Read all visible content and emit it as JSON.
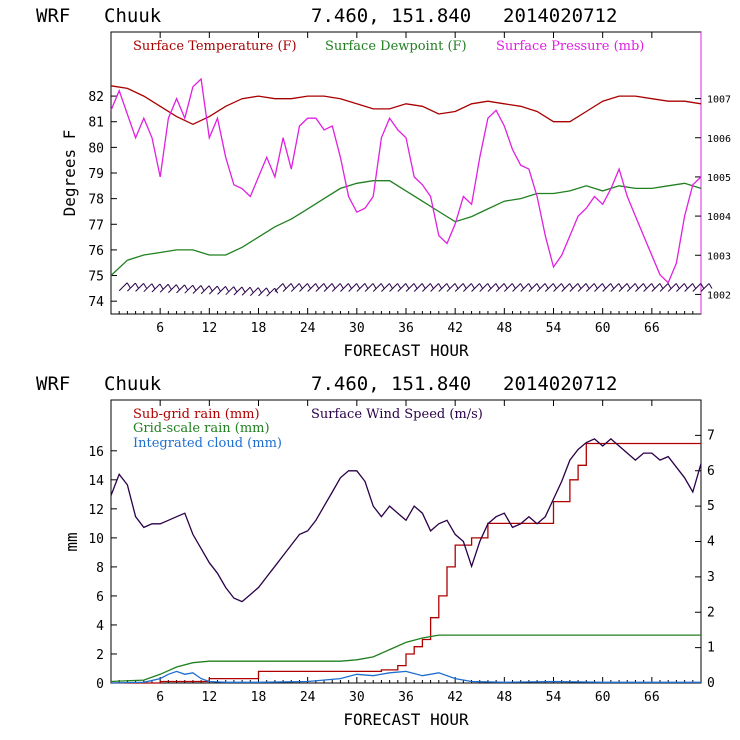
{
  "header": {
    "model": "WRF",
    "station": "Chuuk",
    "coords": "7.460, 151.840",
    "init": "2014020712"
  },
  "colors": {
    "temperature": "#a80000",
    "dewpoint": "#208020",
    "pressure": "#e020e0",
    "wind": "#2a0048",
    "subgrid": "#b00000",
    "gridscale": "#208020",
    "cloud": "#1e6ed0"
  },
  "chart_data": [
    {
      "type": "line",
      "title": "WRF Chuuk 7.460, 151.840 2014020712",
      "xlabel": "FORECAST HOUR",
      "ylabel": "Degrees F",
      "y2label": "",
      "xlim": [
        0,
        72
      ],
      "ylim": [
        73.5,
        84.5
      ],
      "y2lim": [
        1001.5,
        1008.7
      ],
      "xticks": [
        6,
        12,
        18,
        24,
        30,
        36,
        42,
        48,
        54,
        60,
        66
      ],
      "xtick_labels": [
        "6",
        "12",
        "18",
        "24",
        "30",
        "36",
        "42",
        "48",
        "54",
        "60",
        "66"
      ],
      "yticks": [
        74,
        75,
        76,
        77,
        78,
        79,
        80,
        81,
        82
      ],
      "y2ticks": [
        1002,
        1003,
        1004,
        1005,
        1006,
        1007
      ],
      "series": [
        {
          "name": "Surface Temperature (F)",
          "axis": "left",
          "color_key": "temperature",
          "x": [
            0,
            2,
            4,
            6,
            8,
            10,
            12,
            14,
            16,
            18,
            20,
            22,
            24,
            26,
            28,
            30,
            32,
            34,
            36,
            38,
            40,
            42,
            44,
            46,
            48,
            50,
            52,
            54,
            56,
            58,
            60,
            62,
            64,
            66,
            68,
            70,
            72
          ],
          "values": [
            82.4,
            82.3,
            82.0,
            81.6,
            81.2,
            80.9,
            81.2,
            81.6,
            81.9,
            82.0,
            81.9,
            81.9,
            82.0,
            82.0,
            81.9,
            81.7,
            81.5,
            81.5,
            81.7,
            81.6,
            81.3,
            81.4,
            81.7,
            81.8,
            81.7,
            81.6,
            81.4,
            81.0,
            81.0,
            81.4,
            81.8,
            82.0,
            82.0,
            81.9,
            81.8,
            81.8,
            81.7
          ]
        },
        {
          "name": "Surface Dewpoint (F)",
          "axis": "left",
          "color_key": "dewpoint",
          "x": [
            0,
            2,
            4,
            6,
            8,
            10,
            12,
            14,
            16,
            18,
            20,
            22,
            24,
            26,
            28,
            30,
            32,
            34,
            36,
            38,
            40,
            42,
            44,
            46,
            48,
            50,
            52,
            54,
            56,
            58,
            60,
            62,
            64,
            66,
            68,
            70,
            72
          ],
          "values": [
            75.0,
            75.6,
            75.8,
            75.9,
            76.0,
            76.0,
            75.8,
            75.8,
            76.1,
            76.5,
            76.9,
            77.2,
            77.6,
            78.0,
            78.4,
            78.6,
            78.7,
            78.7,
            78.3,
            77.9,
            77.5,
            77.1,
            77.3,
            77.6,
            77.9,
            78.0,
            78.2,
            78.2,
            78.3,
            78.5,
            78.3,
            78.5,
            78.4,
            78.4,
            78.5,
            78.6,
            78.4
          ]
        },
        {
          "name": "Surface Pressure (mb)",
          "axis": "right",
          "color_key": "pressure",
          "x": [
            0,
            1,
            2,
            3,
            4,
            5,
            6,
            7,
            8,
            9,
            10,
            11,
            12,
            13,
            14,
            15,
            16,
            17,
            18,
            19,
            20,
            21,
            22,
            23,
            24,
            25,
            26,
            27,
            28,
            29,
            30,
            31,
            32,
            33,
            34,
            35,
            36,
            37,
            38,
            39,
            40,
            41,
            42,
            43,
            44,
            45,
            46,
            47,
            48,
            49,
            50,
            51,
            52,
            53,
            54,
            55,
            56,
            57,
            58,
            59,
            60,
            61,
            62,
            63,
            64,
            65,
            66,
            67,
            68,
            69,
            70,
            71,
            72
          ],
          "values": [
            1006.7,
            1007.2,
            1006.6,
            1006.0,
            1006.5,
            1006.0,
            1005.0,
            1006.5,
            1007.0,
            1006.5,
            1007.3,
            1007.5,
            1006.0,
            1006.5,
            1005.5,
            1004.8,
            1004.7,
            1004.5,
            1005.0,
            1005.5,
            1005.0,
            1006.0,
            1005.2,
            1006.3,
            1006.5,
            1006.5,
            1006.2,
            1006.3,
            1005.5,
            1004.5,
            1004.1,
            1004.2,
            1004.5,
            1006.0,
            1006.5,
            1006.2,
            1006.0,
            1005.0,
            1004.8,
            1004.5,
            1003.5,
            1003.3,
            1003.8,
            1004.5,
            1004.3,
            1005.5,
            1006.5,
            1006.7,
            1006.3,
            1005.7,
            1005.3,
            1005.2,
            1004.5,
            1003.5,
            1002.7,
            1003.0,
            1003.5,
            1004.0,
            1004.2,
            1004.5,
            1004.3,
            1004.7,
            1005.2,
            1004.5,
            1004.0,
            1003.5,
            1003.0,
            1002.5,
            1002.3,
            1002.8,
            1004.0,
            1004.8,
            1005.0
          ]
        }
      ],
      "wind_barbs": {
        "y": 74.3,
        "x_start": 1,
        "x_end": 72,
        "step": 1
      }
    },
    {
      "type": "line",
      "title": "WRF Chuuk 7.460, 151.840 2014020712",
      "xlabel": "FORECAST HOUR",
      "ylabel": "mm",
      "xlim": [
        0,
        72
      ],
      "ylim": [
        0,
        19.5
      ],
      "y2lim": [
        0,
        8.0
      ],
      "xticks": [
        6,
        12,
        18,
        24,
        30,
        36,
        42,
        48,
        54,
        60,
        66
      ],
      "xtick_labels": [
        "6",
        "12",
        "18",
        "24",
        "30",
        "36",
        "42",
        "48",
        "54",
        "60",
        "66"
      ],
      "yticks": [
        0,
        2,
        4,
        6,
        8,
        10,
        12,
        14,
        16
      ],
      "y2ticks": [
        0,
        1,
        2,
        3,
        4,
        5,
        6,
        7
      ],
      "series": [
        {
          "name": "Sub-grid rain (mm)",
          "axis": "left",
          "color_key": "subgrid",
          "step": true,
          "x": [
            0,
            6,
            12,
            18,
            30,
            33,
            35,
            36,
            37,
            38,
            39,
            40,
            41,
            42,
            44,
            46,
            48,
            53,
            54,
            56,
            57,
            58,
            59,
            60,
            72
          ],
          "values": [
            0.0,
            0.1,
            0.3,
            0.8,
            0.8,
            0.9,
            1.2,
            2.0,
            2.5,
            3.0,
            4.5,
            6.0,
            8.0,
            9.5,
            10.0,
            11.0,
            11.0,
            11.0,
            12.5,
            14.0,
            15.0,
            16.5,
            16.5,
            16.5,
            16.5
          ]
        },
        {
          "name": "Grid-scale rain (mm)",
          "axis": "left",
          "color_key": "gridscale",
          "x": [
            0,
            4,
            6,
            8,
            10,
            12,
            16,
            20,
            24,
            28,
            30,
            32,
            34,
            36,
            38,
            40,
            44,
            48,
            54,
            60,
            66,
            72
          ],
          "values": [
            0.1,
            0.2,
            0.6,
            1.1,
            1.4,
            1.5,
            1.5,
            1.5,
            1.5,
            1.5,
            1.6,
            1.8,
            2.3,
            2.8,
            3.1,
            3.3,
            3.3,
            3.3,
            3.3,
            3.3,
            3.3,
            3.3
          ]
        },
        {
          "name": "Integrated cloud (mm)",
          "axis": "left",
          "color_key": "cloud",
          "x": [
            0,
            4,
            6,
            7,
            8,
            9,
            10,
            11,
            12,
            14,
            18,
            24,
            28,
            30,
            32,
            34,
            36,
            38,
            40,
            42,
            44,
            48,
            54,
            60,
            66,
            72
          ],
          "values": [
            0.0,
            0.05,
            0.3,
            0.6,
            0.8,
            0.6,
            0.7,
            0.3,
            0.1,
            0.05,
            0.05,
            0.1,
            0.3,
            0.6,
            0.5,
            0.7,
            0.8,
            0.5,
            0.7,
            0.3,
            0.1,
            0.05,
            0.1,
            0.05,
            0.05,
            0.05
          ]
        },
        {
          "name": "Surface Wind Speed (m/s)",
          "axis": "right",
          "color_key": "wind",
          "x": [
            0,
            1,
            2,
            3,
            4,
            5,
            6,
            7,
            8,
            9,
            10,
            11,
            12,
            13,
            14,
            15,
            16,
            17,
            18,
            19,
            20,
            21,
            22,
            23,
            24,
            25,
            26,
            27,
            28,
            29,
            30,
            31,
            32,
            33,
            34,
            35,
            36,
            37,
            38,
            39,
            40,
            41,
            42,
            43,
            44,
            45,
            46,
            47,
            48,
            49,
            50,
            51,
            52,
            53,
            54,
            55,
            56,
            57,
            58,
            59,
            60,
            61,
            62,
            63,
            64,
            65,
            66,
            67,
            68,
            69,
            70,
            71,
            72
          ],
          "values": [
            5.3,
            5.9,
            5.6,
            4.7,
            4.4,
            4.5,
            4.5,
            4.6,
            4.7,
            4.8,
            4.2,
            3.8,
            3.4,
            3.1,
            2.7,
            2.4,
            2.3,
            2.5,
            2.7,
            3.0,
            3.3,
            3.6,
            3.9,
            4.2,
            4.3,
            4.6,
            5.0,
            5.4,
            5.8,
            6.0,
            6.0,
            5.7,
            5.0,
            4.7,
            5.0,
            4.8,
            4.6,
            5.0,
            4.8,
            4.3,
            4.5,
            4.6,
            4.2,
            4.0,
            3.3,
            4.0,
            4.5,
            4.7,
            4.8,
            4.4,
            4.5,
            4.7,
            4.5,
            4.7,
            5.2,
            5.7,
            6.3,
            6.6,
            6.8,
            6.9,
            6.7,
            6.9,
            6.7,
            6.5,
            6.3,
            6.5,
            6.5,
            6.3,
            6.4,
            6.1,
            5.8,
            5.4,
            6.2
          ]
        }
      ]
    }
  ]
}
